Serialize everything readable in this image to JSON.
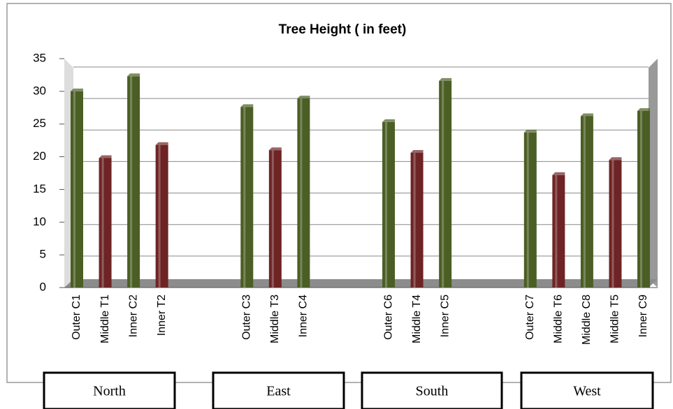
{
  "chart_data": {
    "type": "bar",
    "title": "Tree Height ( in feet)",
    "categories": [
      "Outer C1",
      "Middle T1",
      "Inner C2",
      "Inner T2",
      null,
      null,
      "Outer C3",
      "Middle T3",
      "Inner C4",
      null,
      null,
      "Outer C6",
      "Middle T4",
      "Inner C5",
      null,
      null,
      "Outer C7",
      "Middle T6",
      "Middle C8",
      "Middle T5",
      "Inner C9"
    ],
    "values": [
      30,
      19.8,
      32.3,
      21.8,
      null,
      null,
      27.6,
      21,
      28.9,
      null,
      null,
      25.3,
      20.6,
      31.6,
      null,
      null,
      23.7,
      17.2,
      26.2,
      19.5,
      27
    ],
    "colors": [
      "#4b5e24",
      "#6e2424",
      "#4b5e24",
      "#6e2424",
      null,
      null,
      "#4b5e24",
      "#6e2424",
      "#4b5e24",
      null,
      null,
      "#4b5e24",
      "#6e2424",
      "#4b5e24",
      null,
      null,
      "#4b5e24",
      "#6e2424",
      "#4b5e24",
      "#6e2424",
      "#4b5e24"
    ],
    "groups": [
      "North",
      "East",
      "South",
      "West"
    ],
    "ylim": [
      0,
      35
    ],
    "yticks": [
      0,
      5,
      10,
      15,
      20,
      25,
      30,
      35
    ],
    "grid": true
  }
}
